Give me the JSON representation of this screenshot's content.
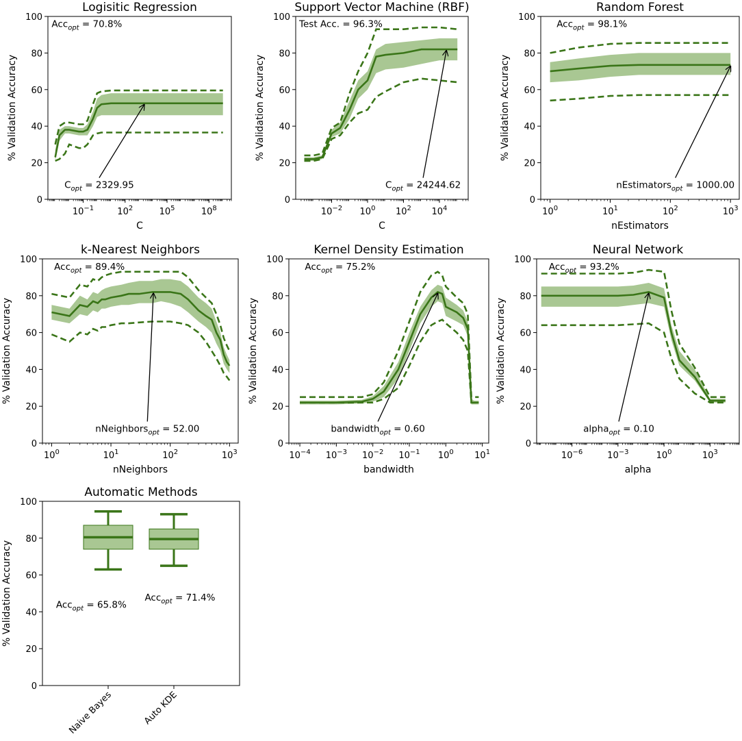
{
  "colors": {
    "line": "#3a7518",
    "band": "#70a24b",
    "band_opacity": 0.6,
    "arrow": "#000000"
  },
  "chart_data": [
    {
      "id": "logreg",
      "type": "line",
      "title": "Logisitic Regression",
      "xlabel": "C",
      "ylabel": "% Validation Accuracy",
      "xscale": "log",
      "xlim": [
        0.0003,
        4000000000
      ],
      "ylim": [
        0,
        100
      ],
      "xticks": [
        0.1,
        100,
        100000,
        100000000
      ],
      "xtick_labels": [
        "10^-1",
        "10^2",
        "10^5",
        "10^8"
      ],
      "yticks": [
        0,
        20,
        40,
        60,
        80,
        100
      ],
      "series": [
        {
          "name": "mean",
          "x": [
            0.001,
            0.002,
            0.005,
            0.01,
            0.05,
            0.1,
            0.2,
            0.5,
            1,
            2,
            10,
            100,
            10000,
            1000000000
          ],
          "values": [
            23,
            35,
            38,
            38,
            37,
            37,
            38,
            44,
            50,
            52,
            52.5,
            52.5,
            52.5,
            52.5
          ]
        },
        {
          "name": "upper_band",
          "values": [
            27,
            38,
            40,
            40,
            39,
            39,
            41,
            48,
            55,
            57,
            58,
            58,
            58,
            58
          ]
        },
        {
          "name": "lower_band",
          "values": [
            21,
            32,
            36,
            36,
            35,
            35,
            35,
            40,
            45,
            46,
            46,
            46,
            46,
            46
          ]
        },
        {
          "name": "upper_dashed",
          "values": [
            30,
            40,
            42,
            42,
            41,
            41,
            43,
            52,
            58,
            59,
            59.5,
            59.5,
            59.5,
            59.5
          ]
        },
        {
          "name": "lower_dashed",
          "values": [
            21,
            22,
            25,
            30,
            28,
            28,
            30,
            35,
            36,
            36.5,
            36.5,
            36.5,
            36.5,
            36.5
          ]
        }
      ],
      "annotations": [
        {
          "id": "acc",
          "text": "Acc",
          "sub": "opt",
          "suffix": " = 70.8%",
          "xf": 0.02,
          "yv": 96
        },
        {
          "id": "opt",
          "text": "C",
          "sub": "opt",
          "suffix": " = 2329.95",
          "xf": 0.09,
          "yv": 8,
          "arrow_to": [
            2329.95,
            52.5
          ]
        }
      ]
    },
    {
      "id": "svm",
      "type": "line",
      "title": "Support Vector Machine (RBF)",
      "xlabel": "C",
      "ylabel": "% Validation Accuracy",
      "xscale": "log",
      "xlim": [
        0.0001,
        400000
      ],
      "ylim": [
        0,
        100
      ],
      "xticks": [
        0.01,
        1,
        100,
        10000
      ],
      "xtick_labels": [
        "10^-2",
        "10^0",
        "10^2",
        "10^4"
      ],
      "yticks": [
        0,
        20,
        40,
        60,
        80,
        100
      ],
      "series": [
        {
          "name": "mean",
          "x": [
            0.0003,
            0.001,
            0.003,
            0.01,
            0.03,
            0.1,
            0.3,
            1,
            3,
            10,
            100,
            1000,
            10000,
            100000
          ],
          "values": [
            22,
            22,
            23,
            36,
            39,
            49,
            60,
            65,
            78,
            79,
            80,
            82,
            82,
            82
          ]
        },
        {
          "name": "upper_band",
          "values": [
            23,
            23,
            24,
            38,
            42,
            54,
            65,
            70,
            82,
            85,
            86,
            87,
            88,
            88
          ]
        },
        {
          "name": "lower_band",
          "values": [
            21,
            21,
            22,
            34,
            36,
            44,
            55,
            60,
            69,
            71,
            72,
            74,
            76,
            76
          ]
        },
        {
          "name": "upper_dashed",
          "values": [
            24,
            24,
            25,
            39,
            42,
            58,
            70,
            80,
            93,
            93,
            93,
            94,
            94,
            93
          ]
        },
        {
          "name": "lower_dashed",
          "values": [
            21,
            21,
            22,
            33,
            35,
            42,
            47,
            49,
            56,
            59,
            64,
            66,
            65,
            64
          ]
        }
      ],
      "annotations": [
        {
          "id": "acc",
          "text": "Test Acc. = 96.3%",
          "sub": "",
          "suffix": "",
          "xf": 0.02,
          "yv": 96
        },
        {
          "id": "opt",
          "text": "C",
          "sub": "opt",
          "suffix": " = 24244.62",
          "xf": 0.52,
          "yv": 8,
          "arrow_to": [
            24244.62,
            82
          ]
        }
      ]
    },
    {
      "id": "rf",
      "type": "line",
      "title": "Random Forest",
      "xlabel": "nEstimators",
      "ylabel": "% Validation Accuracy",
      "xscale": "log",
      "xlim": [
        0.7,
        1400
      ],
      "ylim": [
        0,
        100
      ],
      "xticks": [
        1,
        10,
        100,
        1000
      ],
      "xtick_labels": [
        "10^0",
        "10^1",
        "10^2",
        "10^3"
      ],
      "yticks": [
        0,
        20,
        40,
        60,
        80,
        100
      ],
      "series": [
        {
          "name": "mean",
          "x": [
            1,
            3,
            10,
            30,
            100,
            300,
            1000
          ],
          "values": [
            70,
            71.5,
            73,
            73.5,
            73.5,
            73.5,
            73.5
          ]
        },
        {
          "name": "upper_band",
          "values": [
            75,
            77,
            79,
            80,
            80,
            80,
            80
          ]
        },
        {
          "name": "lower_band",
          "values": [
            64,
            65,
            67,
            68,
            68,
            68,
            68
          ]
        },
        {
          "name": "upper_dashed",
          "values": [
            80,
            83,
            85,
            85.5,
            85.5,
            85.5,
            85.5
          ]
        },
        {
          "name": "lower_dashed",
          "values": [
            54,
            55,
            56.5,
            57,
            57,
            57,
            57
          ]
        }
      ],
      "annotations": [
        {
          "id": "acc",
          "text": "Acc",
          "sub": "opt",
          "suffix": " = 98.1%",
          "xf": 0.08,
          "yv": 96
        },
        {
          "id": "opt",
          "text": "nEstimators",
          "sub": "opt",
          "suffix": " = 1000.00",
          "xf": 0.38,
          "yv": 8,
          "arrow_to": [
            1000,
            73.5
          ]
        }
      ]
    },
    {
      "id": "knn",
      "type": "line",
      "title": "k-Nearest Neighbors",
      "xlabel": "nNeighbors",
      "ylabel": "% Validation Accuracy",
      "xscale": "log",
      "xlim": [
        0.7,
        1400
      ],
      "ylim": [
        0,
        100
      ],
      "xticks": [
        1,
        10,
        100,
        1000
      ],
      "xtick_labels": [
        "10^0",
        "10^1",
        "10^2",
        "10^3"
      ],
      "yticks": [
        0,
        20,
        40,
        60,
        80,
        100
      ],
      "series": [
        {
          "name": "mean",
          "x": [
            1,
            2,
            3,
            4,
            5,
            6,
            7,
            8,
            10,
            15,
            20,
            30,
            50,
            70,
            100,
            150,
            200,
            300,
            400,
            500,
            600,
            700,
            800,
            900,
            1000
          ],
          "values": [
            71,
            69,
            75,
            74,
            77,
            76,
            78,
            78,
            79,
            80,
            81,
            81,
            82,
            82,
            82,
            81,
            78,
            72,
            69,
            67,
            60,
            56,
            48,
            44,
            42
          ]
        },
        {
          "name": "upper_band",
          "values": [
            75,
            73,
            80,
            78,
            82,
            81,
            83,
            84,
            85,
            86,
            87,
            88,
            88,
            89,
            89,
            88,
            85,
            79,
            76,
            73,
            66,
            60,
            52,
            48,
            45
          ]
        },
        {
          "name": "lower_band",
          "values": [
            67,
            65,
            70,
            69,
            72,
            71,
            73,
            73,
            74,
            75,
            75,
            76,
            76,
            77,
            76,
            74,
            71,
            66,
            63,
            60,
            54,
            50,
            43,
            40,
            38
          ]
        },
        {
          "name": "upper_dashed",
          "values": [
            81,
            79,
            86,
            85,
            89,
            88,
            90,
            91,
            92,
            93,
            93,
            93,
            93,
            93,
            93,
            93,
            90,
            83,
            79,
            76,
            70,
            64,
            57,
            53,
            50
          ]
        },
        {
          "name": "lower_dashed",
          "values": [
            59,
            55,
            60,
            59,
            62,
            61,
            63,
            63,
            64,
            65,
            65,
            65.5,
            66,
            66,
            66,
            65,
            64,
            60,
            55,
            50,
            46,
            42,
            38,
            36,
            34
          ]
        }
      ],
      "annotations": [
        {
          "id": "acc",
          "text": "Acc",
          "sub": "opt",
          "suffix": " = 89.4%",
          "xf": 0.06,
          "yv": 96
        },
        {
          "id": "opt",
          "text": "nNeighbors",
          "sub": "opt",
          "suffix": " = 52.00",
          "xf": 0.27,
          "yv": 8,
          "arrow_to": [
            52,
            82
          ]
        }
      ]
    },
    {
      "id": "kde",
      "type": "line",
      "title": "Kernel Density Estimation",
      "xlabel": "bandwidth",
      "ylabel": "% Validation Accuracy",
      "xscale": "log",
      "xlim": [
        5e-05,
        15
      ],
      "ylim": [
        0,
        100
      ],
      "xticks": [
        0.0001,
        0.001,
        0.01,
        0.1,
        1,
        10
      ],
      "xtick_labels": [
        "10^-4",
        "10^-3",
        "10^-2",
        "10^-1",
        "10^0",
        "10^1"
      ],
      "yticks": [
        0,
        20,
        40,
        60,
        80,
        100
      ],
      "series": [
        {
          "name": "mean",
          "x": [
            0.0001,
            0.001,
            0.005,
            0.01,
            0.02,
            0.05,
            0.1,
            0.2,
            0.4,
            0.6,
            0.8,
            1,
            2,
            3,
            4,
            5,
            6,
            8
          ],
          "values": [
            22,
            22,
            22.5,
            24,
            28,
            40,
            55,
            70,
            79,
            82,
            81,
            74,
            71,
            68,
            62,
            22,
            22,
            22
          ]
        },
        {
          "name": "upper_band",
          "values": [
            23,
            23,
            23.5,
            25.5,
            31,
            44,
            60,
            74,
            83,
            86,
            85,
            79,
            75,
            72,
            66,
            24,
            23,
            23
          ]
        },
        {
          "name": "lower_band",
          "values": [
            21,
            21,
            21.5,
            22.5,
            25,
            35,
            50,
            65,
            74,
            77,
            76,
            69,
            66,
            64,
            58,
            21,
            21,
            21
          ]
        },
        {
          "name": "upper_dashed",
          "values": [
            25,
            25,
            25,
            26.5,
            33,
            50,
            66,
            82,
            91,
            93,
            91,
            85,
            79,
            76,
            70,
            25,
            25,
            25
          ]
        },
        {
          "name": "lower_dashed",
          "values": [
            22,
            22,
            22,
            22,
            24,
            30,
            42,
            55,
            64,
            66,
            67,
            65,
            60,
            56,
            50,
            22,
            22,
            22
          ]
        }
      ],
      "annotations": [
        {
          "id": "acc",
          "text": "Acc",
          "sub": "opt",
          "suffix": " = 75.2%",
          "xf": 0.08,
          "yv": 96
        },
        {
          "id": "opt",
          "text": "bandwidth",
          "sub": "opt",
          "suffix": " = 0.60",
          "xf": 0.21,
          "yv": 8,
          "arrow_to": [
            0.6,
            82
          ]
        }
      ]
    },
    {
      "id": "nn",
      "type": "line",
      "title": "Neural Network",
      "xlabel": "alpha",
      "ylabel": "% Validation Accuracy",
      "xscale": "log",
      "xlim": [
        5e-09,
        80000
      ],
      "ylim": [
        0,
        100
      ],
      "xticks": [
        1e-06,
        0.001,
        1,
        1000
      ],
      "xtick_labels": [
        "10^-6",
        "10^-3",
        "10^0",
        "10^3"
      ],
      "yticks": [
        0,
        20,
        40,
        60,
        80,
        100
      ],
      "series": [
        {
          "name": "mean",
          "x": [
            1e-08,
            1e-07,
            1e-06,
            1e-05,
            0.0001,
            0.001,
            0.01,
            0.1,
            1,
            3,
            10,
            100,
            1000,
            10000
          ],
          "values": [
            80,
            80,
            80,
            80,
            80,
            80,
            80.5,
            82,
            79,
            60,
            45,
            36,
            23,
            23
          ]
        },
        {
          "name": "upper_band",
          "values": [
            85,
            85,
            85,
            85,
            85,
            85,
            85.5,
            87,
            84,
            64,
            50,
            40,
            24,
            24
          ]
        },
        {
          "name": "lower_band",
          "values": [
            74,
            74,
            74,
            74,
            74,
            74,
            75,
            76,
            74,
            56,
            42,
            34,
            22,
            22
          ]
        },
        {
          "name": "upper_dashed",
          "values": [
            92,
            92,
            92,
            92,
            92,
            92,
            92.5,
            94,
            93,
            72,
            54,
            41,
            25,
            25
          ]
        },
        {
          "name": "lower_dashed",
          "values": [
            64,
            64,
            64,
            64,
            64,
            64,
            64.5,
            65,
            60,
            46,
            35,
            27,
            22,
            22
          ]
        }
      ],
      "annotations": [
        {
          "id": "acc",
          "text": "Acc",
          "sub": "opt",
          "suffix": " = 93.2%",
          "xf": 0.06,
          "yv": 96
        },
        {
          "id": "opt",
          "text": "alpha",
          "sub": "opt",
          "suffix": " = 0.10",
          "xf": 0.23,
          "yv": 8,
          "arrow_to": [
            0.1,
            82
          ]
        }
      ]
    },
    {
      "id": "auto",
      "type": "box",
      "title": "Automatic Methods",
      "xlabel": "",
      "ylabel": "% Validation Accuracy",
      "ylim": [
        0,
        100
      ],
      "yticks": [
        0,
        20,
        40,
        60,
        80,
        100
      ],
      "categories": [
        "Naive Bayes",
        "Auto KDE"
      ],
      "boxes": [
        {
          "name": "Naive Bayes",
          "whisker_low": 63,
          "q1": 74,
          "median": 80.5,
          "q3": 87,
          "whisker_high": 94.5
        },
        {
          "name": "Auto KDE",
          "whisker_low": 65,
          "q1": 74,
          "median": 79.5,
          "q3": 85,
          "whisker_high": 93
        }
      ],
      "annotations": [
        {
          "id": "acc_nb",
          "text": "Acc",
          "sub": "opt",
          "suffix": " = 65.8%",
          "xf": 0.18,
          "yv": 44
        },
        {
          "id": "acc_kde",
          "text": "Acc",
          "sub": "opt",
          "suffix": " = 71.4%",
          "xf": 0.63,
          "yv": 48
        }
      ]
    }
  ]
}
